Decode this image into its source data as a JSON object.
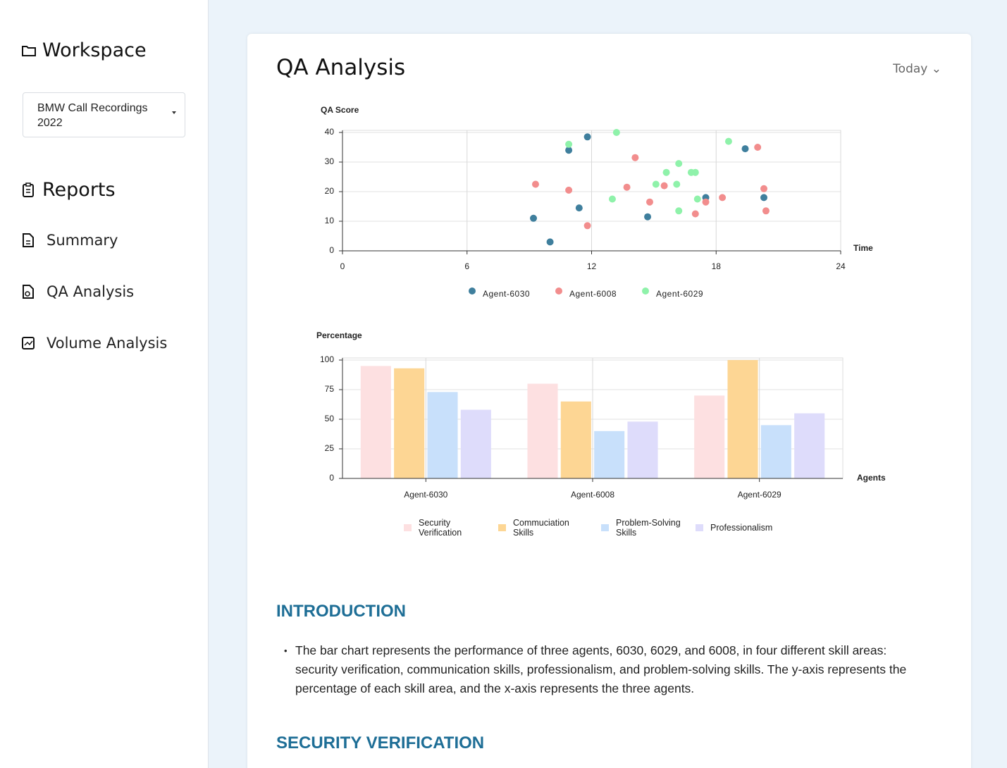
{
  "sidebar": {
    "workspace_title": "Workspace",
    "workspace_select": "BMW Call Recordings 2022",
    "reports_title": "Reports",
    "nav": [
      "Summary",
      "QA Analysis",
      "Volume Analysis"
    ]
  },
  "header": {
    "title": "QA Analysis",
    "filter": "Today"
  },
  "chart_data": [
    {
      "type": "scatter",
      "y_label": "QA Score",
      "x_label": "Time",
      "xlim": [
        0,
        24
      ],
      "xticks": [
        0,
        6,
        12,
        18,
        24
      ],
      "ylim": [
        0,
        40
      ],
      "yticks": [
        0,
        10,
        20,
        30,
        40
      ],
      "grid": true,
      "legend": "bottom",
      "series": [
        {
          "name": "Agent-6030",
          "color": "#3f7f9d",
          "x": [
            9.2,
            10.0,
            10.9,
            11.4,
            11.8,
            14.7,
            17.5,
            19.4,
            20.3
          ],
          "values": [
            11,
            3,
            34,
            14.5,
            38.5,
            11.5,
            18,
            34.5,
            18
          ]
        },
        {
          "name": "Agent-6008",
          "color": "#f28d8d",
          "x": [
            9.3,
            10.9,
            11.8,
            13.7,
            14.1,
            14.8,
            15.5,
            17.0,
            17.5,
            18.3,
            20.0,
            20.3,
            20.4
          ],
          "values": [
            22.5,
            20.5,
            8.5,
            21.5,
            31.5,
            16.5,
            22,
            12.5,
            16.5,
            18,
            35,
            21,
            13.5
          ]
        },
        {
          "name": "Agent-6029",
          "color": "#8ff2aa",
          "x": [
            10.9,
            13.0,
            13.2,
            15.1,
            15.6,
            16.1,
            16.2,
            16.2,
            16.8,
            17.0,
            17.1,
            18.6
          ],
          "values": [
            36,
            17.5,
            40,
            22.5,
            26.5,
            22.5,
            29.5,
            13.5,
            26.5,
            26.5,
            17.5,
            37
          ]
        }
      ]
    },
    {
      "type": "bar",
      "y_label": "Percentage",
      "x_label": "Agents",
      "categories": [
        "Agent-6030",
        "Agent-6008",
        "Agent-6029"
      ],
      "ylim": [
        0,
        100
      ],
      "yticks": [
        0,
        25,
        50,
        75,
        100
      ],
      "grid": true,
      "legend": "bottom",
      "series": [
        {
          "name": "Security Verification",
          "color": "#fde0e1",
          "values": [
            95,
            80,
            70
          ]
        },
        {
          "name": "Commuciation Skills",
          "color": "#fdd694",
          "values": [
            93,
            65,
            100
          ]
        },
        {
          "name": "Problem-Solving Skills",
          "color": "#c8e0fb",
          "values": [
            73,
            40,
            45
          ]
        },
        {
          "name": "Professionalism",
          "color": "#dedcfb",
          "values": [
            58,
            48,
            55
          ]
        }
      ]
    }
  ],
  "content": {
    "sections": [
      {
        "heading": "INTRODUCTION",
        "bullets": [
          "The bar chart represents the performance of three agents, 6030, 6029, and 6008, in four different skill areas: security verification, communication skills, professionalism, and problem-solving skills. The y-axis represents the percentage of each skill area, and the x-axis represents the three agents."
        ]
      },
      {
        "heading": "SECURITY VERIFICATION",
        "bullets": []
      }
    ]
  }
}
